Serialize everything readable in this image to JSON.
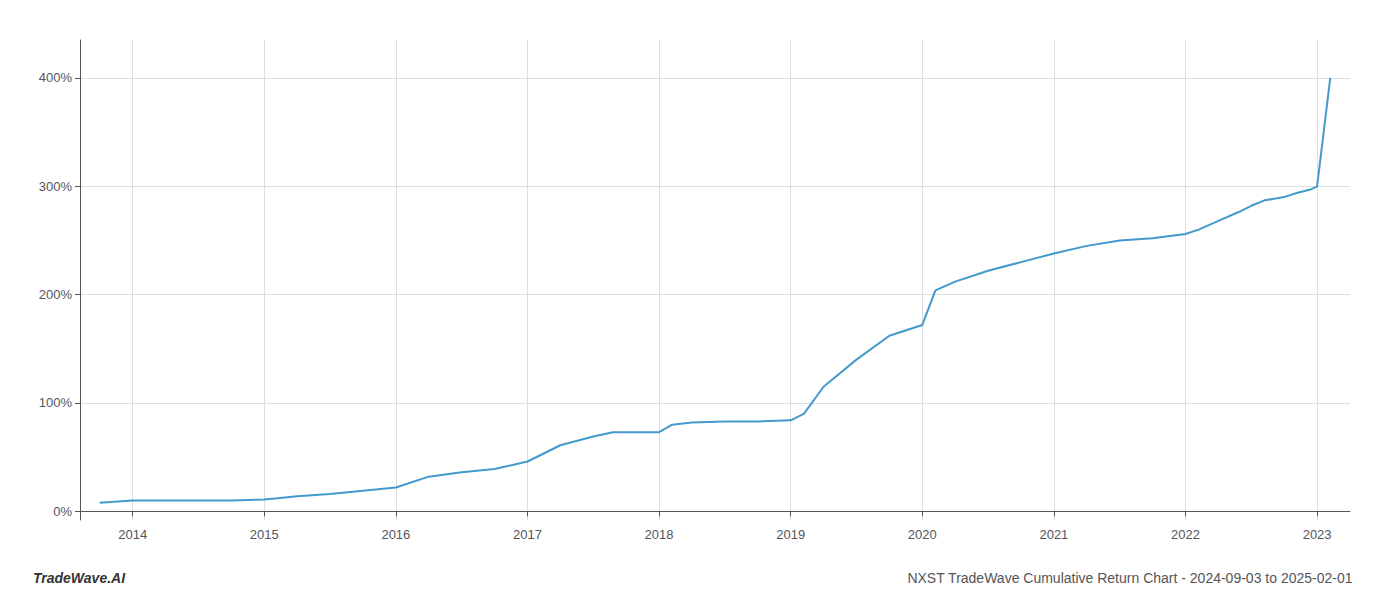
{
  "chart_data": {
    "type": "line",
    "title": "NXST TradeWave Cumulative Return Chart - 2024-09-03 to 2025-02-01",
    "annotations": [
      "TradeWave.AI"
    ],
    "color": "#4499cc",
    "x": [
      2013.75,
      2014.0,
      2014.1,
      2014.25,
      2014.5,
      2014.75,
      2015.0,
      2015.1,
      2015.25,
      2015.5,
      2015.75,
      2016.0,
      2016.25,
      2016.5,
      2016.75,
      2017.0,
      2017.25,
      2017.5,
      2017.65,
      2017.75,
      2018.0,
      2018.1,
      2018.25,
      2018.5,
      2018.75,
      2019.0,
      2019.1,
      2019.25,
      2019.5,
      2019.75,
      2020.0,
      2020.1,
      2020.25,
      2020.5,
      2020.75,
      2021.0,
      2021.25,
      2021.5,
      2021.75,
      2022.0,
      2022.1,
      2022.25,
      2022.4,
      2022.5,
      2022.6,
      2022.75,
      2022.85,
      2022.95,
      2023.0,
      2023.1
    ],
    "values": [
      0.08,
      0.1,
      0.1,
      0.1,
      0.1,
      0.1,
      0.11,
      0.12,
      0.14,
      0.16,
      0.19,
      0.22,
      0.32,
      0.36,
      0.39,
      0.46,
      0.61,
      0.69,
      0.73,
      0.73,
      0.73,
      0.8,
      0.82,
      0.83,
      0.83,
      0.84,
      0.9,
      1.15,
      1.4,
      1.62,
      1.72,
      2.04,
      2.12,
      2.22,
      2.3,
      2.38,
      2.45,
      2.5,
      2.52,
      2.56,
      2.6,
      2.68,
      2.76,
      2.82,
      2.87,
      2.9,
      2.94,
      2.97,
      3.0,
      4.0
    ],
    "xlim": [
      2013.6,
      2023.25
    ],
    "xticks": [
      2014,
      2015,
      2016,
      2017,
      2018,
      2019,
      2020,
      2021,
      2022,
      2023
    ],
    "ylim": [
      -0.08,
      4.35
    ],
    "yticks": [
      {
        "value": 0.0,
        "label": "0%"
      },
      {
        "value": 1.0,
        "label": "100%"
      },
      {
        "value": 2.0,
        "label": "200%"
      },
      {
        "value": 3.0,
        "label": "300%"
      },
      {
        "value": 4.0,
        "label": "400%"
      }
    ],
    "grid": true
  }
}
